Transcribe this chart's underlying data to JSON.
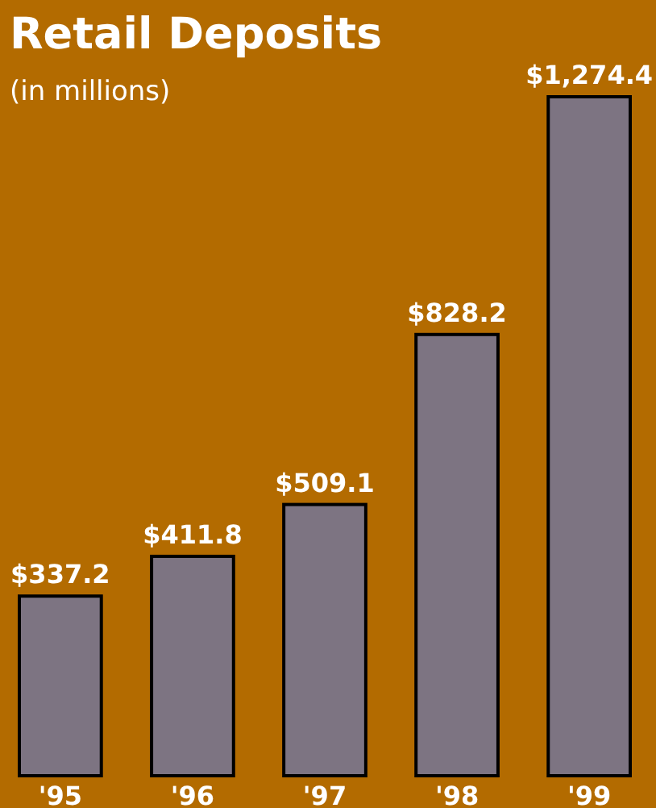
{
  "chart_data": {
    "type": "bar",
    "title": "Retail Deposits",
    "subtitle": "(in millions)",
    "categories": [
      "'95",
      "'96",
      "'97",
      "'98",
      "'99"
    ],
    "values": [
      337.2,
      411.8,
      509.1,
      828.2,
      1274.4
    ],
    "value_labels": [
      "$337.2",
      "$411.8",
      "$509.1",
      "$828.2",
      "$1,274.4"
    ],
    "color": "#7d7482",
    "tick_labels": "x"
  }
}
